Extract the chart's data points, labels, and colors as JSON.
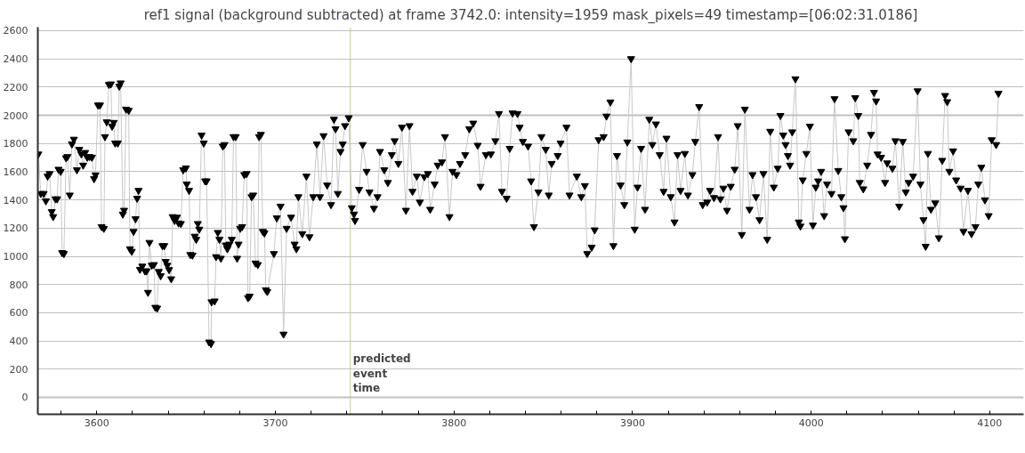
{
  "chart_data": {
    "type": "line",
    "title": "ref1 signal (background subtracted) at frame 3742.0: intensity=1959 mask_pixels=49 timestamp=[06:02:31.0186]",
    "xlim": [
      3567,
      4119
    ],
    "ylim": [
      -120,
      2625
    ],
    "xticks": [
      {
        "value": 3580,
        "label": null
      },
      3600,
      {
        "value": 3620,
        "label": null
      },
      {
        "value": 3640,
        "label": null
      },
      {
        "value": 3660,
        "label": null
      },
      {
        "value": 3680,
        "label": null
      },
      3700,
      {
        "value": 3720,
        "label": null
      },
      {
        "value": 3740,
        "label": null
      },
      {
        "value": 3760,
        "label": null
      },
      {
        "value": 3780,
        "label": null
      },
      3800,
      {
        "value": 3820,
        "label": null
      },
      {
        "value": 3840,
        "label": null
      },
      {
        "value": 3860,
        "label": null
      },
      {
        "value": 3880,
        "label": null
      },
      3900,
      {
        "value": 3920,
        "label": null
      },
      {
        "value": 3940,
        "label": null
      },
      {
        "value": 3960,
        "label": null
      },
      {
        "value": 3980,
        "label": null
      },
      4000,
      {
        "value": 4020,
        "label": null
      },
      {
        "value": 4040,
        "label": null
      },
      {
        "value": 4060,
        "label": null
      },
      {
        "value": 4080,
        "label": null
      },
      4100
    ],
    "yticks": [
      0,
      200,
      400,
      600,
      800,
      1000,
      1200,
      1400,
      1600,
      1800,
      2000,
      2200,
      2400,
      2600
    ],
    "grid": "y",
    "marker": "triangle",
    "line_style": "solid",
    "ref_lines": [
      {
        "axis": "x",
        "value": 3742,
        "label": "predicted event time",
        "color": "#c8c896"
      }
    ],
    "series": [
      {
        "color": "#000000",
        "x": [
          3567.3,
          3568.7,
          3570.3,
          3571.5,
          3572.5,
          3573.6,
          3574.8,
          3575.6,
          3576.9,
          3577.8,
          3578.6,
          3579.8,
          3580.6,
          3581.6,
          3582.8,
          3583.6,
          3584.9,
          3586.1,
          3587.2,
          3588.9,
          3590.2,
          3591.4,
          3592.4,
          3593.5,
          3594.7,
          3596.0,
          3597.3,
          3598.5,
          3599.3,
          3600.7,
          3601.8,
          3602.7,
          3604.0,
          3604.6,
          3605.6,
          3606.8,
          3607.9,
          3608.6,
          3609.5,
          3610.3,
          3611.8,
          3612.6,
          3613.4,
          3614.6,
          3615.3,
          3616.4,
          3617.9,
          3618.6,
          3619.6,
          3620.6,
          3621.7,
          3622.6,
          3623.4,
          3624.2,
          3625.5,
          3627.0,
          3627.9,
          3628.7,
          3629.5,
          3630.8,
          3632.0,
          3632.8,
          3633.8,
          3634.7,
          3635.8,
          3636.8,
          3637.8,
          3638.6,
          3639.5,
          3640.5,
          3641.7,
          3642.5,
          3643.6,
          3644.9,
          3645.8,
          3647.1,
          3648.4,
          3649.9,
          3650.4,
          3651.7,
          3652.4,
          3653.6,
          3654.9,
          3655.7,
          3656.6,
          3657.4,
          3658.7,
          3659.9,
          3660.7,
          3661.5,
          3662.9,
          3664.0,
          3664.3,
          3666.0,
          3666.8,
          3667.8,
          3668.7,
          3669.5,
          3670.6,
          3671.5,
          3672.3,
          3673.1,
          3674.3,
          3675.6,
          3676.6,
          3677.8,
          3678.6,
          3679.4,
          3680.3,
          3681.4,
          3682.6,
          3683.9,
          3684.7,
          3685.6,
          3686.7,
          3687.6,
          3688.9,
          3690.2,
          3690.9,
          3691.9,
          3693.0,
          3693.9,
          3694.7,
          3695.5,
          3699.2,
          3700.8,
          3702.9,
          3704.6,
          3706.3,
          3708.8,
          3710.8,
          3711.8,
          3712.9,
          3715.1,
          3717.4,
          3719.1,
          3721.2,
          3723.2,
          3725.0,
          3727.0,
          3729.0,
          3731.2,
          3732.8,
          3733.7,
          3735.0,
          3736.5,
          3737.7,
          3739.0,
          3741.1,
          3742.8,
          3744.0,
          3744.6,
          3746.9,
          3748.9,
          3751.1,
          3752.7,
          3755.2,
          3757.2,
          3758.6,
          3761.0,
          3763.0,
          3765.2,
          3766.8,
          3768.9,
          3770.9,
          3773.1,
          3775.1,
          3776.8,
          3779.2,
          3780.9,
          3783.4,
          3785.4,
          3786.7,
          3789.2,
          3790.9,
          3793.3,
          3795.0,
          3797.5,
          3799.2,
          3801.4,
          3803.4,
          3806.3,
          3808.6,
          3810.8,
          3813.3,
          3814.9,
          3817.9,
          3820.7,
          3823.2,
          3825.2,
          3826.9,
          3829.5,
          3831.2,
          3832.8,
          3835.6,
          3836.8,
          3838.6,
          3841.5,
          3843.2,
          3844.8,
          3847.3,
          3849.0,
          3851.4,
          3853.1,
          3854.7,
          3858.1,
          3859.7,
          3863.0,
          3864.7,
          3868.8,
          3871.3,
          3873.3,
          3874.6,
          3877.1,
          3878.8,
          3881.0,
          3883.8,
          3885.4,
          3887.6,
          3889.3,
          3891.3,
          3893.3,
          3895.4,
          3897.1,
          3899.2,
          3901.2,
          3902.8,
          3904.8,
          3907.0,
          3909.4,
          3911.1,
          3913.1,
          3915.2,
          3917.4,
          3919.0,
          3921.4,
          3923.5,
          3925.2,
          3926.9,
          3929.3,
          3931.0,
          3933.5,
          3935.1,
          3937.3,
          3939.3,
          3941.8,
          3943.4,
          3945.6,
          3947.9,
          3949.2,
          3950.9,
          3952.9,
          3955.0,
          3957.2,
          3958.9,
          3961.2,
          3962.9,
          3965.5,
          3967.2,
          3969.1,
          3971.1,
          3973.3,
          3975.4,
          3977.1,
          3979.1,
          3981.3,
          3982.8,
          3984.4,
          3985.7,
          3987.0,
          3988.2,
          3989.4,
          3991.2,
          3993.1,
          3994.0,
          3995.3,
          3997.3,
          3999.3,
          4001.0,
          4002.6,
          4003.9,
          4005.6,
          4007.3,
          4008.9,
          4011.4,
          4013.1,
          4015.2,
          4016.9,
          4018.1,
          4018.9,
          4021.0,
          4023.6,
          4024.7,
          4026.4,
          4027.2,
          4029.2,
          4031.4,
          4033.5,
          4035.2,
          4036.4,
          4037.2,
          4039.2,
          4041.4,
          4042.6,
          4045.5,
          4047.2,
          4049.3,
          4051.3,
          4053.0,
          4054.6,
          4057.1,
          4059.6,
          4061.2,
          4062.9,
          4064.1,
          4065.4,
          4067.1,
          4069.5,
          4071.5,
          4073.4,
          4075.0,
          4076.2,
          4077.4,
          4079.5,
          4081.2,
          4083.7,
          4085.3,
          4087.8,
          4089.8,
          4092.0,
          4093.6,
          4095.3,
          4097.3,
          4099.4,
          4101.1,
          4103.6,
          4104.9
        ],
        "values": [
          1725,
          1445,
          1445,
          1393,
          1568,
          1586,
          1317,
          1281,
          1407,
          1407,
          1617,
          1602,
          1026,
          1019,
          1698,
          1707,
          1434,
          1796,
          1830,
          1613,
          1758,
          1725,
          1646,
          1736,
          1702,
          1707,
          1702,
          1550,
          1577,
          2072,
          2072,
          1210,
          1198,
          1848,
          1953,
          2218,
          2222,
          1922,
          1949,
          1803,
          1803,
          2206,
          2229,
          1299,
          1326,
          2043,
          2034,
          1053,
          1035,
          1176,
          1266,
          1411,
          1467,
          907,
          930,
          896,
          896,
          744,
          1098,
          936,
          941,
          638,
          632,
          892,
          862,
          1075,
          1075,
          963,
          936,
          905,
          840,
          1281,
          1254,
          1277,
          1236,
          1232,
          1613,
          1626,
          1512,
          1467,
          1012,
          1008,
          1142,
          1120,
          1232,
          1192,
          1859,
          1803,
          1534,
          1534,
          392,
          381,
          677,
          683,
          997,
          1169,
          1120,
          986,
          1781,
          1792,
          1080,
          1053,
          1086,
          1120,
          1848,
          1848,
          986,
          1086,
          1198,
          1210,
          1579,
          1586,
          706,
          717,
          1422,
          1434,
          952,
          941,
          1848,
          1864,
          1176,
          1165,
          762,
          750,
          1019,
          1272,
          1355,
          448,
          1198,
          1277,
          1086,
          1053,
          1422,
          1160,
          1568,
          1138,
          1422,
          1796,
          1422,
          1855,
          1505,
          1366,
          1971,
          1904,
          1445,
          1743,
          1796,
          1926,
          1982,
          1344,
          1299,
          1254,
          1474,
          1792,
          1602,
          1456,
          1340,
          1422,
          1743,
          1613,
          1523,
          1720,
          1819,
          1658,
          1915,
          1326,
          1926,
          1460,
          1568,
          1384,
          1564,
          1586,
          1333,
          1512,
          1646,
          1669,
          1848,
          1281,
          1602,
          1579,
          1658,
          1720,
          1904,
          1944,
          1787,
          1496,
          1720,
          1725,
          1819,
          2012,
          1460,
          1411,
          1765,
          2016,
          2012,
          1915,
          1814,
          1781,
          1534,
          1210,
          1456,
          1848,
          1758,
          1434,
          1658,
          1714,
          1803,
          1915,
          1434,
          1568,
          1422,
          1501,
          1019,
          1064,
          1187,
          1826,
          1848,
          1994,
          2094,
          1075,
          1714,
          1505,
          1366,
          1810,
          2401,
          1192,
          1490,
          1765,
          1333,
          1971,
          1792,
          1938,
          1720,
          1460,
          1837,
          1422,
          1243,
          1720,
          1467,
          1729,
          1434,
          1579,
          1814,
          2061,
          1366,
          1384,
          1467,
          1416,
          1848,
          1407,
          1483,
          1326,
          1496,
          1617,
          1926,
          1154,
          2043,
          1333,
          1579,
          1422,
          1259,
          1586,
          1120,
          1886,
          1490,
          1624,
          1998,
          1859,
          1792,
          1714,
          1646,
          1882,
          2258,
          1243,
          1214,
          1541,
          1729,
          1922,
          1221,
          1490,
          1534,
          1602,
          1288,
          1512,
          1445,
          2117,
          1608,
          1422,
          1344,
          1124,
          1882,
          1819,
          2124,
          1998,
          1523,
          1478,
          1646,
          1864,
          2162,
          2101,
          1725,
          1702,
          1523,
          1662,
          1624,
          1819,
          1355,
          1814,
          1456,
          1523,
          1568,
          2173,
          1512,
          1259,
          1071,
          1729,
          1333,
          1378,
          1131,
          1680,
          2140,
          2096,
          1602,
          1747,
          1541,
          1483,
          1176,
          1467,
          1160,
          1210,
          1512,
          1631,
          1400,
          1288,
          1826,
          1792,
          2155
        ]
      }
    ]
  }
}
